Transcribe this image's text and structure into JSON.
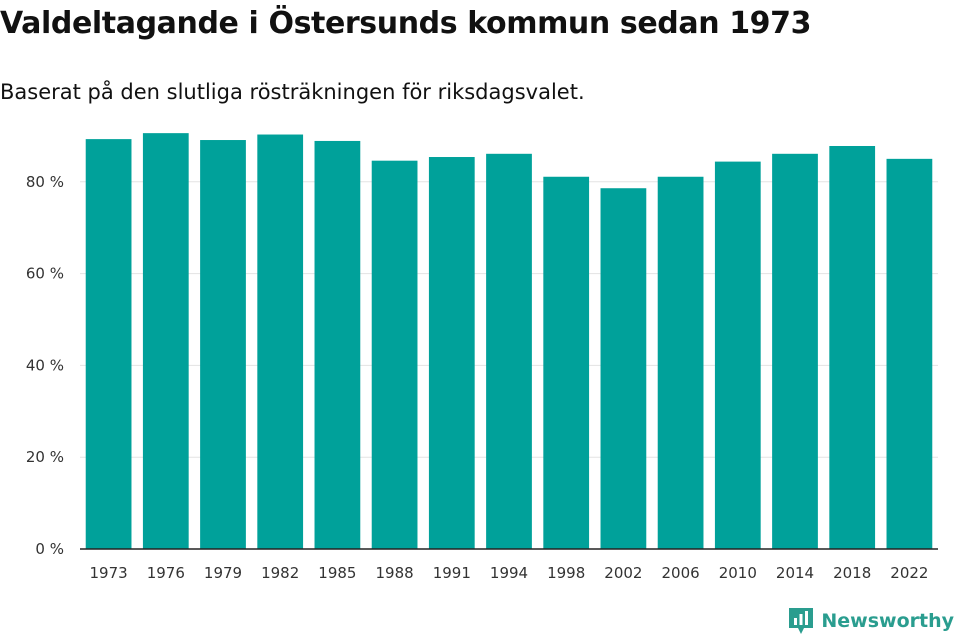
{
  "chart_data": {
    "type": "bar",
    "title": "Valdeltagande i Östersunds kommun sedan 1973",
    "subtitle": "Baserat på den slutliga rösträkningen för riksdagsvalet.",
    "categories": [
      "1973",
      "1976",
      "1979",
      "1982",
      "1985",
      "1988",
      "1991",
      "1994",
      "1998",
      "2002",
      "2006",
      "2010",
      "2014",
      "2018",
      "2022"
    ],
    "values": [
      89.3,
      90.6,
      89.1,
      90.3,
      88.9,
      84.6,
      85.4,
      86.1,
      81.1,
      78.6,
      81.1,
      84.4,
      86.1,
      87.8,
      85.0
    ],
    "ylim": [
      0,
      100
    ],
    "yticks": [
      0,
      20,
      40,
      60,
      80
    ],
    "ytick_labels": [
      "0 %",
      "20 %",
      "40 %",
      "60 %",
      "80 %"
    ],
    "xlabel": "",
    "ylabel": "",
    "grid": true,
    "bar_color": "#00a19a"
  },
  "brand": {
    "name": "Newsworthy",
    "icon": "newsworthy-logo-icon",
    "color": "#2a9d8f"
  }
}
